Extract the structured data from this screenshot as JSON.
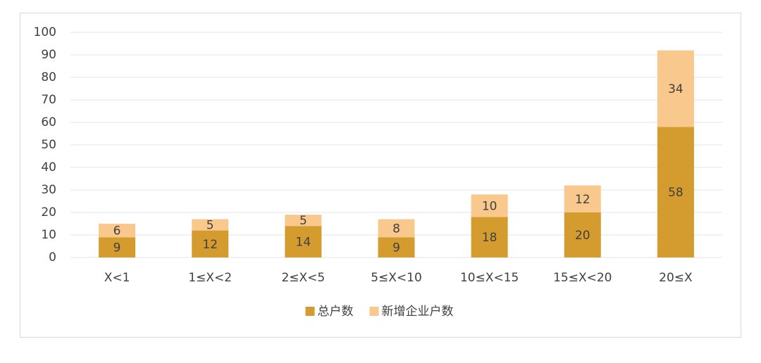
{
  "chart_data": {
    "type": "stacked_bar",
    "categories": [
      "X<1",
      "1≤X<2",
      "2≤X<5",
      "5≤X<10",
      "10≤X<15",
      "15≤X<20",
      "20≤X"
    ],
    "series": [
      {
        "name": "总户数",
        "color": "#d49c2f",
        "values": [
          9,
          12,
          14,
          9,
          18,
          20,
          58
        ]
      },
      {
        "name": "新增企业户数",
        "color": "#f8c88c",
        "values": [
          6,
          5,
          5,
          8,
          10,
          12,
          34
        ]
      }
    ],
    "ylim": [
      0,
      100
    ],
    "yticks": [
      0,
      10,
      20,
      30,
      40,
      50,
      60,
      70,
      80,
      90,
      100
    ],
    "grid": true,
    "legend": "bottom"
  }
}
